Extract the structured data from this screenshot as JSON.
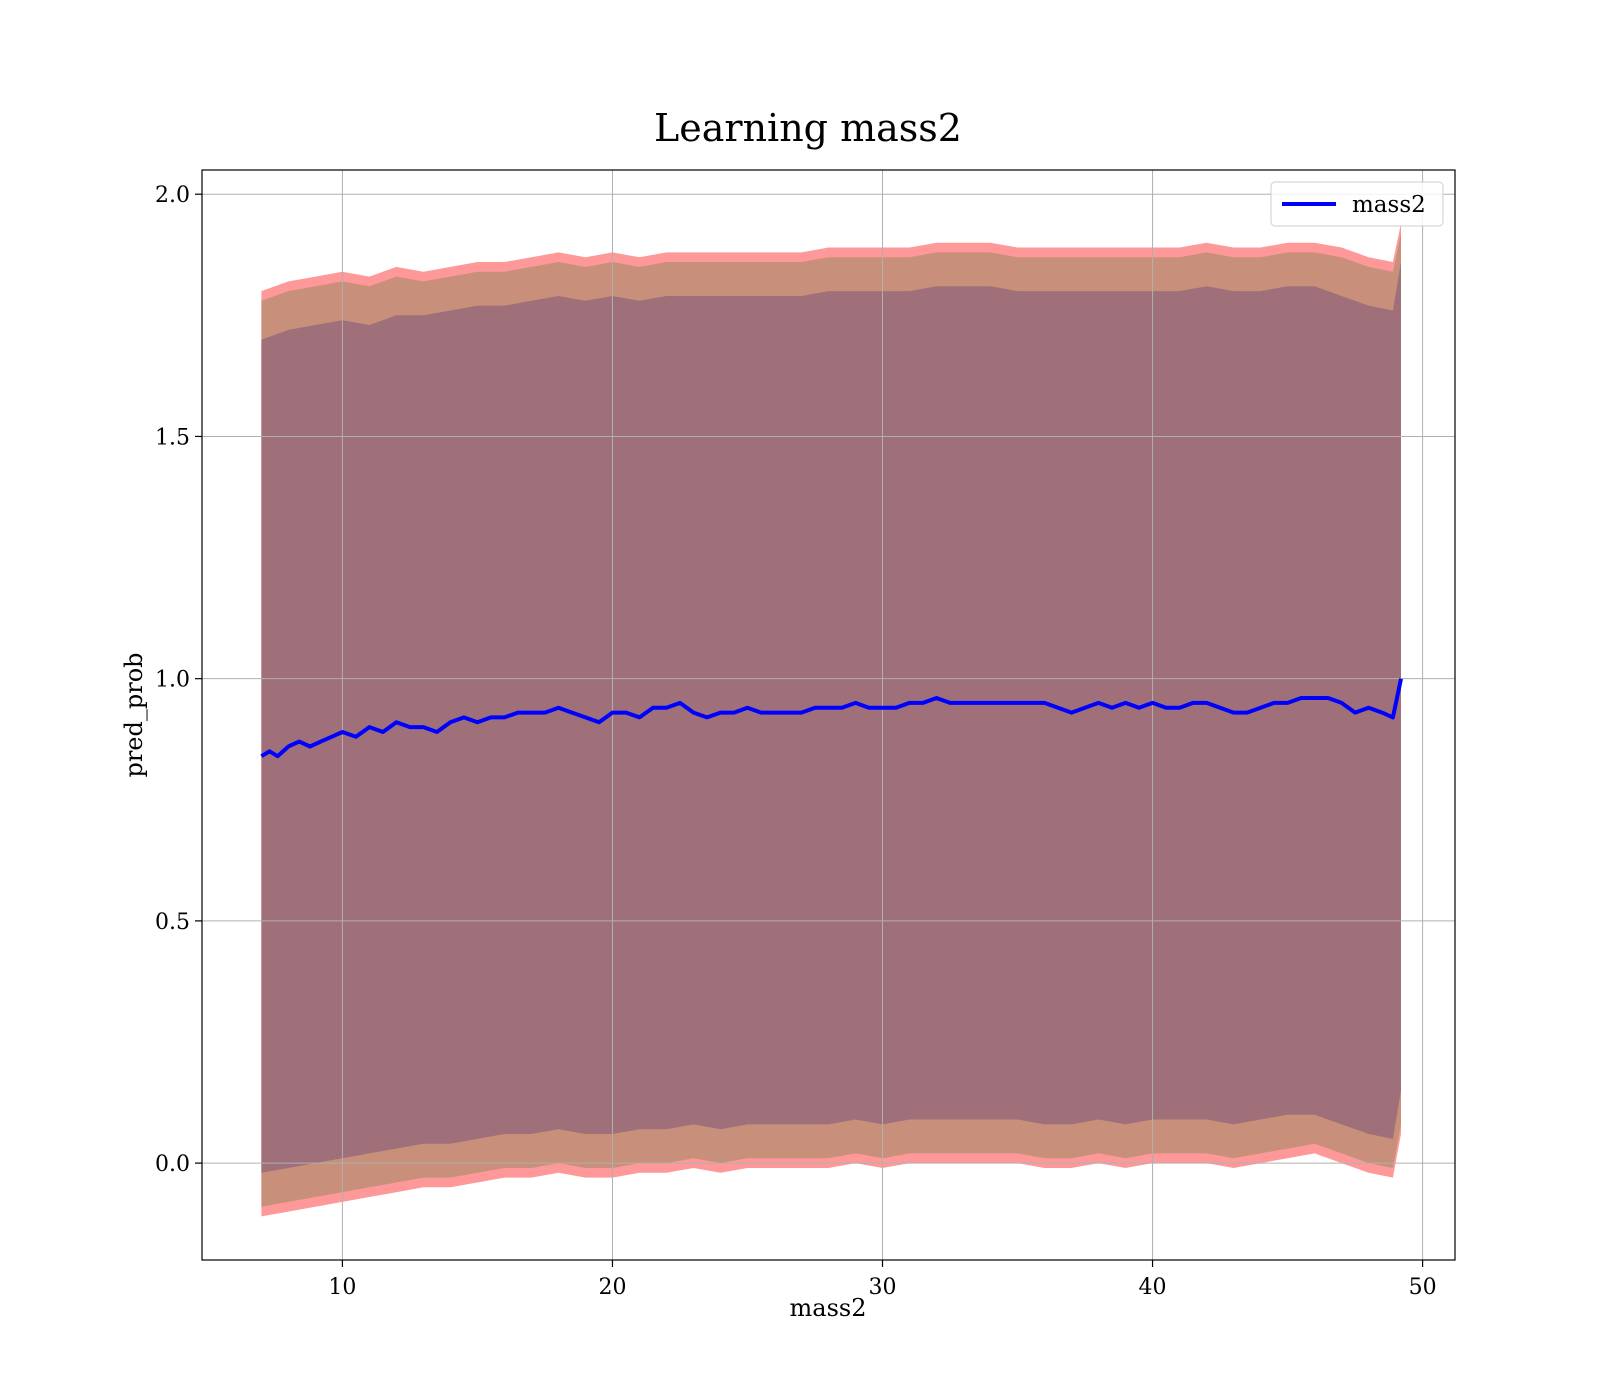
{
  "chart_data": {
    "type": "line",
    "title": "Learning mass2",
    "xlabel": "mass2",
    "ylabel": "pred_prob",
    "xlim": [
      4.8,
      51.2
    ],
    "ylim": [
      -0.2,
      2.05
    ],
    "xticks": [
      10,
      20,
      30,
      40,
      50
    ],
    "xtick_labels": [
      "10",
      "20",
      "30",
      "40",
      "50"
    ],
    "yticks": [
      0.0,
      0.5,
      1.0,
      1.5,
      2.0
    ],
    "ytick_labels": [
      "0.0",
      "0.5",
      "1.0",
      "1.5",
      "2.0"
    ],
    "grid": true,
    "legend_position": "top-right",
    "colors": {
      "line": "#0000ff",
      "band_outer": "#ff9999",
      "band_middle": "#c8907a",
      "band_inner": "#a0707a"
    },
    "series": [
      {
        "name": "mass2",
        "x": [
          7.0,
          7.3,
          7.6,
          8.0,
          8.4,
          8.8,
          9.2,
          9.6,
          10.0,
          10.5,
          11.0,
          11.5,
          12.0,
          12.5,
          13.0,
          13.5,
          14.0,
          14.5,
          15.0,
          15.5,
          16.0,
          16.5,
          17.0,
          17.5,
          18.0,
          18.5,
          19.0,
          19.5,
          20.0,
          20.5,
          21.0,
          21.5,
          22.0,
          22.5,
          23.0,
          23.5,
          24.0,
          24.5,
          25.0,
          25.5,
          26.0,
          26.5,
          27.0,
          27.5,
          28.0,
          28.5,
          29.0,
          29.5,
          30.0,
          30.5,
          31.0,
          31.5,
          32.0,
          32.5,
          33.0,
          33.5,
          34.0,
          34.5,
          35.0,
          35.5,
          36.0,
          36.5,
          37.0,
          37.5,
          38.0,
          38.5,
          39.0,
          39.5,
          40.0,
          40.5,
          41.0,
          41.5,
          42.0,
          42.5,
          43.0,
          43.5,
          44.0,
          44.5,
          45.0,
          45.5,
          46.0,
          46.5,
          47.0,
          47.5,
          48.0,
          48.5,
          48.9,
          49.2
        ],
        "values": [
          0.84,
          0.85,
          0.84,
          0.86,
          0.87,
          0.86,
          0.87,
          0.88,
          0.89,
          0.88,
          0.9,
          0.89,
          0.91,
          0.9,
          0.9,
          0.89,
          0.91,
          0.92,
          0.91,
          0.92,
          0.92,
          0.93,
          0.93,
          0.93,
          0.94,
          0.93,
          0.92,
          0.91,
          0.93,
          0.93,
          0.92,
          0.94,
          0.94,
          0.95,
          0.93,
          0.92,
          0.93,
          0.93,
          0.94,
          0.93,
          0.93,
          0.93,
          0.93,
          0.94,
          0.94,
          0.94,
          0.95,
          0.94,
          0.94,
          0.94,
          0.95,
          0.95,
          0.96,
          0.95,
          0.95,
          0.95,
          0.95,
          0.95,
          0.95,
          0.95,
          0.95,
          0.94,
          0.93,
          0.94,
          0.95,
          0.94,
          0.95,
          0.94,
          0.95,
          0.94,
          0.94,
          0.95,
          0.95,
          0.94,
          0.93,
          0.93,
          0.94,
          0.95,
          0.95,
          0.96,
          0.96,
          0.96,
          0.95,
          0.93,
          0.94,
          0.93,
          0.92,
          1.0
        ]
      }
    ],
    "bands": [
      {
        "x": [
          7.0,
          8.0,
          9.0,
          10.0,
          11.0,
          12.0,
          13.0,
          14.0,
          15.0,
          16.0,
          17.0,
          18.0,
          19.0,
          20.0,
          21.0,
          22.0,
          23.0,
          24.0,
          25.0,
          26.0,
          27.0,
          28.0,
          29.0,
          30.0,
          31.0,
          32.0,
          33.0,
          34.0,
          35.0,
          36.0,
          37.0,
          38.0,
          39.0,
          40.0,
          41.0,
          42.0,
          43.0,
          44.0,
          45.0,
          46.0,
          47.0,
          48.0,
          48.9,
          49.2
        ],
        "upper": [
          1.8,
          1.82,
          1.83,
          1.84,
          1.83,
          1.85,
          1.84,
          1.85,
          1.86,
          1.86,
          1.87,
          1.88,
          1.87,
          1.88,
          1.87,
          1.88,
          1.88,
          1.88,
          1.88,
          1.88,
          1.88,
          1.89,
          1.89,
          1.89,
          1.89,
          1.9,
          1.9,
          1.9,
          1.89,
          1.89,
          1.89,
          1.89,
          1.89,
          1.89,
          1.89,
          1.9,
          1.89,
          1.89,
          1.9,
          1.9,
          1.89,
          1.87,
          1.86,
          1.94
        ],
        "lower": [
          -0.11,
          -0.1,
          -0.09,
          -0.08,
          -0.07,
          -0.06,
          -0.05,
          -0.05,
          -0.04,
          -0.03,
          -0.03,
          -0.02,
          -0.03,
          -0.03,
          -0.02,
          -0.02,
          -0.01,
          -0.02,
          -0.01,
          -0.01,
          -0.01,
          -0.01,
          0.0,
          -0.01,
          0.0,
          0.0,
          0.0,
          0.0,
          0.0,
          -0.01,
          -0.01,
          0.0,
          -0.01,
          0.0,
          0.0,
          0.0,
          -0.01,
          0.0,
          0.01,
          0.02,
          0.0,
          -0.02,
          -0.03,
          0.06
        ]
      },
      {
        "x": [
          7.0,
          8.0,
          9.0,
          10.0,
          11.0,
          12.0,
          13.0,
          14.0,
          15.0,
          16.0,
          17.0,
          18.0,
          19.0,
          20.0,
          21.0,
          22.0,
          23.0,
          24.0,
          25.0,
          26.0,
          27.0,
          28.0,
          29.0,
          30.0,
          31.0,
          32.0,
          33.0,
          34.0,
          35.0,
          36.0,
          37.0,
          38.0,
          39.0,
          40.0,
          41.0,
          42.0,
          43.0,
          44.0,
          45.0,
          46.0,
          47.0,
          48.0,
          48.9,
          49.2
        ],
        "upper": [
          1.78,
          1.8,
          1.81,
          1.82,
          1.81,
          1.83,
          1.82,
          1.83,
          1.84,
          1.84,
          1.85,
          1.86,
          1.85,
          1.86,
          1.85,
          1.86,
          1.86,
          1.86,
          1.86,
          1.86,
          1.86,
          1.87,
          1.87,
          1.87,
          1.87,
          1.88,
          1.88,
          1.88,
          1.87,
          1.87,
          1.87,
          1.87,
          1.87,
          1.87,
          1.87,
          1.88,
          1.87,
          1.87,
          1.88,
          1.88,
          1.87,
          1.85,
          1.84,
          1.92
        ],
        "lower": [
          -0.09,
          -0.08,
          -0.07,
          -0.06,
          -0.05,
          -0.04,
          -0.03,
          -0.03,
          -0.02,
          -0.01,
          -0.01,
          0.0,
          -0.01,
          -0.01,
          0.0,
          0.0,
          0.01,
          0.0,
          0.01,
          0.01,
          0.01,
          0.01,
          0.02,
          0.01,
          0.02,
          0.02,
          0.02,
          0.02,
          0.02,
          0.01,
          0.01,
          0.02,
          0.01,
          0.02,
          0.02,
          0.02,
          0.01,
          0.02,
          0.03,
          0.04,
          0.02,
          0.0,
          -0.01,
          0.08
        ]
      },
      {
        "x": [
          7.0,
          8.0,
          9.0,
          10.0,
          11.0,
          12.0,
          13.0,
          14.0,
          15.0,
          16.0,
          17.0,
          18.0,
          19.0,
          20.0,
          21.0,
          22.0,
          23.0,
          24.0,
          25.0,
          26.0,
          27.0,
          28.0,
          29.0,
          30.0,
          31.0,
          32.0,
          33.0,
          34.0,
          35.0,
          36.0,
          37.0,
          38.0,
          39.0,
          40.0,
          41.0,
          42.0,
          43.0,
          44.0,
          45.0,
          46.0,
          47.0,
          48.0,
          48.9,
          49.2
        ],
        "upper": [
          1.7,
          1.72,
          1.73,
          1.74,
          1.73,
          1.75,
          1.75,
          1.76,
          1.77,
          1.77,
          1.78,
          1.79,
          1.78,
          1.79,
          1.78,
          1.79,
          1.79,
          1.79,
          1.79,
          1.79,
          1.79,
          1.8,
          1.8,
          1.8,
          1.8,
          1.81,
          1.81,
          1.81,
          1.8,
          1.8,
          1.8,
          1.8,
          1.8,
          1.8,
          1.8,
          1.81,
          1.8,
          1.8,
          1.81,
          1.81,
          1.79,
          1.77,
          1.76,
          1.86
        ],
        "lower": [
          -0.02,
          -0.01,
          0.0,
          0.01,
          0.02,
          0.03,
          0.04,
          0.04,
          0.05,
          0.06,
          0.06,
          0.07,
          0.06,
          0.06,
          0.07,
          0.07,
          0.08,
          0.07,
          0.08,
          0.08,
          0.08,
          0.08,
          0.09,
          0.08,
          0.09,
          0.09,
          0.09,
          0.09,
          0.09,
          0.08,
          0.08,
          0.09,
          0.08,
          0.09,
          0.09,
          0.09,
          0.08,
          0.09,
          0.1,
          0.1,
          0.08,
          0.06,
          0.05,
          0.15
        ]
      }
    ]
  }
}
